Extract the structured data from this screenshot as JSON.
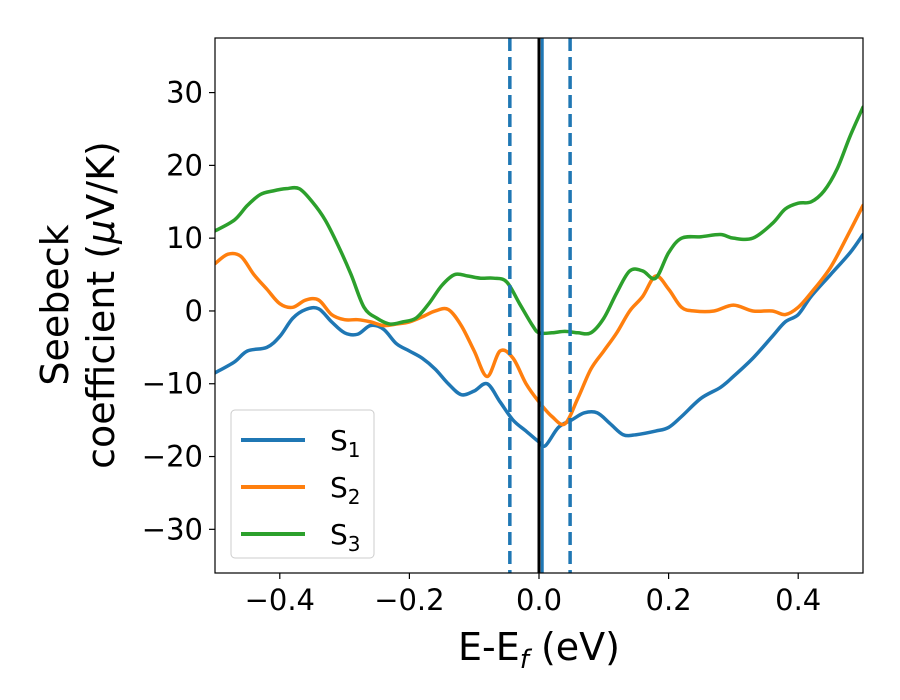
{
  "chart_data": {
    "type": "line",
    "xlabel": {
      "main": "E-E",
      "sub": "f",
      "unit": " (eV)"
    },
    "ylabel": {
      "line1": "Seebeck",
      "line2_text": "coefficient  (",
      "line2_mu": "μ",
      "line2_unit": "V/K)"
    },
    "xlim": [
      -0.5,
      0.5
    ],
    "ylim": [
      -36,
      37.5
    ],
    "xticks": [
      -0.4,
      -0.2,
      0.0,
      0.2,
      0.4
    ],
    "xtick_labels": [
      "−0.4",
      "−0.2",
      "0.0",
      "0.2",
      "0.4"
    ],
    "yticks": [
      -30,
      -20,
      -10,
      0,
      10,
      20,
      30
    ],
    "ytick_labels": [
      "−30",
      "−20",
      "−10",
      "0",
      "10",
      "20",
      "30"
    ],
    "grid": false,
    "legend_position": "lower-left",
    "vlines": [
      {
        "x": 0.0,
        "style": "solid",
        "color": "#000000"
      },
      {
        "x": 0.005,
        "style": "solid",
        "color": "#1f77b4"
      },
      {
        "x": -0.045,
        "style": "dashed",
        "color": "#1f77b4"
      },
      {
        "x": 0.048,
        "style": "dashed",
        "color": "#1f77b4"
      }
    ],
    "series": [
      {
        "name": "S",
        "sub": "1",
        "color": "#1f77b4",
        "x": [
          -0.5,
          -0.47,
          -0.45,
          -0.42,
          -0.4,
          -0.38,
          -0.36,
          -0.34,
          -0.32,
          -0.3,
          -0.28,
          -0.26,
          -0.24,
          -0.22,
          -0.2,
          -0.18,
          -0.16,
          -0.14,
          -0.12,
          -0.1,
          -0.08,
          -0.06,
          -0.04,
          -0.02,
          0.0,
          0.01,
          0.03,
          0.05,
          0.07,
          0.09,
          0.11,
          0.13,
          0.15,
          0.18,
          0.2,
          0.22,
          0.25,
          0.28,
          0.3,
          0.33,
          0.36,
          0.38,
          0.4,
          0.42,
          0.45,
          0.48,
          0.5
        ],
        "y": [
          -8.5,
          -7.0,
          -5.5,
          -5.0,
          -3.5,
          -1.0,
          0.2,
          0.3,
          -1.5,
          -3.0,
          -3.2,
          -2.0,
          -2.5,
          -4.5,
          -5.5,
          -6.5,
          -8.0,
          -10.0,
          -11.5,
          -11.0,
          -10.0,
          -12.5,
          -15.0,
          -16.5,
          -18.0,
          -18.5,
          -16.0,
          -15.0,
          -14.0,
          -14.0,
          -15.5,
          -17.0,
          -17.0,
          -16.5,
          -16.0,
          -14.5,
          -12.0,
          -10.5,
          -9.0,
          -6.5,
          -3.5,
          -1.5,
          -0.5,
          2.0,
          5.0,
          8.0,
          10.5
        ]
      },
      {
        "name": "S",
        "sub": "2",
        "color": "#ff7f0e",
        "x": [
          -0.5,
          -0.48,
          -0.46,
          -0.44,
          -0.42,
          -0.4,
          -0.38,
          -0.36,
          -0.34,
          -0.32,
          -0.3,
          -0.28,
          -0.26,
          -0.24,
          -0.22,
          -0.2,
          -0.18,
          -0.16,
          -0.14,
          -0.12,
          -0.1,
          -0.08,
          -0.06,
          -0.04,
          -0.02,
          0.0,
          0.02,
          0.04,
          0.06,
          0.08,
          0.1,
          0.12,
          0.14,
          0.16,
          0.18,
          0.2,
          0.22,
          0.24,
          0.27,
          0.3,
          0.33,
          0.36,
          0.38,
          0.4,
          0.42,
          0.45,
          0.48,
          0.5
        ],
        "y": [
          6.5,
          7.8,
          7.5,
          5.0,
          3.0,
          1.0,
          0.5,
          1.5,
          1.5,
          -0.5,
          -1.2,
          -1.2,
          -1.5,
          -2.0,
          -1.8,
          -1.5,
          -0.8,
          0.0,
          0.2,
          -2.0,
          -5.5,
          -9.0,
          -5.5,
          -6.5,
          -10.0,
          -12.5,
          -14.5,
          -15.5,
          -12.0,
          -8.0,
          -5.5,
          -3.0,
          0.0,
          2.0,
          4.8,
          3.0,
          0.5,
          0.0,
          0.0,
          0.8,
          0.0,
          0.0,
          -0.5,
          0.5,
          2.5,
          6.0,
          11.0,
          14.5
        ]
      },
      {
        "name": "S",
        "sub": "3",
        "color": "#2ca02c",
        "x": [
          -0.5,
          -0.47,
          -0.45,
          -0.43,
          -0.41,
          -0.39,
          -0.37,
          -0.35,
          -0.33,
          -0.31,
          -0.29,
          -0.27,
          -0.25,
          -0.23,
          -0.21,
          -0.19,
          -0.17,
          -0.15,
          -0.13,
          -0.11,
          -0.09,
          -0.07,
          -0.05,
          -0.03,
          -0.01,
          0.0,
          0.02,
          0.04,
          0.06,
          0.08,
          0.1,
          0.12,
          0.14,
          0.16,
          0.18,
          0.2,
          0.22,
          0.25,
          0.28,
          0.3,
          0.33,
          0.36,
          0.38,
          0.4,
          0.42,
          0.44,
          0.46,
          0.48,
          0.5
        ],
        "y": [
          11.0,
          12.5,
          14.5,
          16.0,
          16.5,
          16.8,
          16.8,
          15.0,
          12.5,
          9.0,
          5.0,
          0.5,
          -1.0,
          -1.8,
          -1.5,
          -1.0,
          1.0,
          3.5,
          5.0,
          4.8,
          4.5,
          4.5,
          4.0,
          1.0,
          -2.0,
          -3.0,
          -3.0,
          -2.8,
          -3.0,
          -3.0,
          -1.0,
          2.5,
          5.5,
          5.5,
          4.5,
          8.0,
          10.0,
          10.2,
          10.5,
          10.0,
          10.0,
          12.0,
          14.0,
          14.8,
          15.0,
          16.5,
          19.5,
          24.0,
          28.0
        ]
      }
    ]
  }
}
